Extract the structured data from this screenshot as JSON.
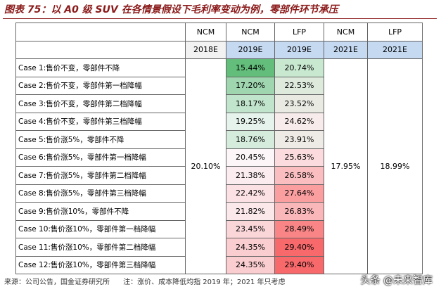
{
  "header": {
    "title": "图表 75：以 A0 级 SUV 在各情景假设下毛利率变动为例，零部件环节承压"
  },
  "table": {
    "header_rows": [
      [
        "NCM",
        "NCM",
        "LFP",
        "NCM",
        "LFP"
      ],
      [
        "2018E",
        "2019E",
        "2019E",
        "2021E",
        "2021E"
      ]
    ],
    "rows": [
      [
        "Case 1:售价不变，零部件不降",
        "15.44%",
        "20.74%"
      ],
      [
        "Case 2:售价不变，零部件第一档降幅",
        "17.20%",
        "22.53%"
      ],
      [
        "Case 3:售价不变，零部件第二档降幅",
        "18.17%",
        "23.52%"
      ],
      [
        "Case 4:售价不变，零部件第三档降幅",
        "19.25%",
        "24.62%"
      ],
      [
        "Case 5:售价涨5%，零部件不降",
        "18.76%",
        "23.91%"
      ],
      [
        "Case 6:售价涨5%，零部件第一档降幅",
        "20.45%",
        "25.63%"
      ],
      [
        "Case 7:售价涨5%，零部件第二档降幅",
        "21.38%",
        "26.58%"
      ],
      [
        "Case 8:售价涨5%，零部件第三档降幅",
        "22.42%",
        "27.64%"
      ],
      [
        "Case 9:售价涨10%，零部件不降",
        "21.82%",
        "26.83%"
      ],
      [
        "Case 10:售价涨10%，零部件第一档降幅",
        "23.45%",
        "28.49%"
      ],
      [
        "Case 11:售价涨10%，零部件第二档降幅",
        "24.35%",
        "29.40%"
      ],
      [
        "Case 12:售价涨10%，零部件第三档降幅",
        "24.35%",
        "29.40%"
      ]
    ],
    "merged": [
      "20.10%",
      "17.95%",
      "18.99%"
    ]
  },
  "footer": {
    "source": "来源：公司公告，国金证券研究所",
    "note": "注：涨价、成本降低均指 2019 年；2021 年只考虑",
    "watermark": "头条 @未来智库"
  }
}
